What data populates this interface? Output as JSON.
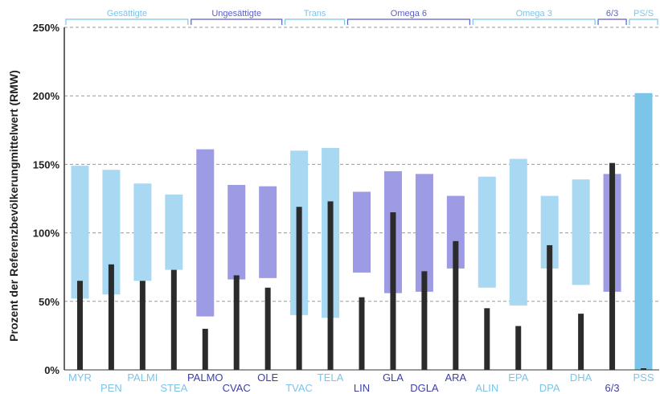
{
  "chart_data": {
    "type": "bar",
    "ylabel": "Prozent der Referenzbevölkerungmittelwert (RMW)",
    "ylim": [
      0,
      250
    ],
    "yticks": [
      "0%",
      "50%",
      "100%",
      "150%",
      "200%",
      "250%"
    ],
    "grid": true,
    "groups": [
      {
        "label": "Gesättigte",
        "color": "#7cc4e8",
        "members": [
          "MYR",
          "PEN",
          "PALMI",
          "STEA"
        ]
      },
      {
        "label": "Ungesättigte",
        "color": "#5b5fc7",
        "members": [
          "PALMO",
          "CVAC",
          "OLE"
        ]
      },
      {
        "label": "Trans",
        "color": "#7cc4e8",
        "members": [
          "TVAC",
          "TELA"
        ]
      },
      {
        "label": "Omega 6",
        "color": "#5b5fc7",
        "members": [
          "LIN",
          "GLA",
          "DGLA",
          "ARA"
        ]
      },
      {
        "label": "Omega 3",
        "color": "#7cc4e8",
        "members": [
          "ALIN",
          "EPA",
          "DPA",
          "DHA"
        ]
      },
      {
        "label": "6/3",
        "color": "#5b5fc7",
        "members": [
          "6/3"
        ]
      },
      {
        "label": "PS/S",
        "color": "#7cc4e8",
        "members": [
          "PSS"
        ]
      }
    ],
    "categories": [
      "MYR",
      "PEN",
      "PALMI",
      "STEA",
      "PALMO",
      "CVAC",
      "OLE",
      "TVAC",
      "TELA",
      "LIN",
      "GLA",
      "DGLA",
      "ARA",
      "ALIN",
      "EPA",
      "DPA",
      "DHA",
      "6/3",
      "PSS"
    ],
    "range_colors": [
      "#a9d8f3",
      "#a9d8f3",
      "#a9d8f3",
      "#a9d8f3",
      "#9d9be3",
      "#9d9be3",
      "#9d9be3",
      "#a9d8f3",
      "#a9d8f3",
      "#9d9be3",
      "#9d9be3",
      "#9d9be3",
      "#9d9be3",
      "#a9d8f3",
      "#a9d8f3",
      "#a9d8f3",
      "#a9d8f3",
      "#9d9be3",
      "#7cc4e8"
    ],
    "label_colors": [
      "#7cc4e8",
      "#7cc4e8",
      "#7cc4e8",
      "#7cc4e8",
      "#3c3fa8",
      "#3c3fa8",
      "#3c3fa8",
      "#7cc4e8",
      "#7cc4e8",
      "#3c3fa8",
      "#3c3fa8",
      "#3c3fa8",
      "#3c3fa8",
      "#7cc4e8",
      "#7cc4e8",
      "#7cc4e8",
      "#7cc4e8",
      "#3c3fa8",
      "#7cc4e8"
    ],
    "series": [
      {
        "name": "",
        "low": [
          52,
          55,
          65,
          73,
          39,
          66,
          67,
          40,
          38,
          71,
          56,
          57,
          74,
          60,
          47,
          74,
          62,
          57,
          0
        ],
        "high": [
          149,
          146,
          136,
          128,
          161,
          135,
          134,
          160,
          162,
          130,
          145,
          143,
          127,
          141,
          154,
          127,
          139,
          143,
          202
        ]
      },
      {
        "name": "",
        "values": [
          65,
          77,
          65,
          73,
          30,
          69,
          60,
          119,
          123,
          53,
          115,
          72,
          94,
          45,
          32,
          91,
          41,
          151,
          0
        ]
      }
    ],
    "colors": {
      "marker": "#2b2b2b",
      "grid": "#9a9a9a",
      "axis": "#333333"
    }
  }
}
